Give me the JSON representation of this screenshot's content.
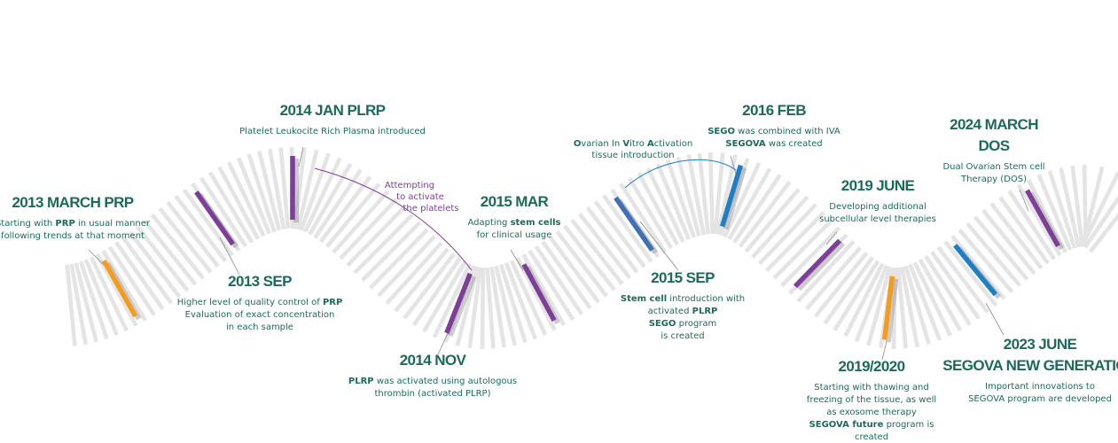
{
  "milestones": [
    {
      "title": [
        "2013 MARCH PRP"
      ],
      "color": "#f39c1e",
      "lines": [
        [
          "Starting with ",
          {
            "bold": "PRP"
          },
          "  in usual manner"
        ],
        [
          "following trends at that moment"
        ]
      ]
    },
    {
      "title": [
        "2013 SEP"
      ],
      "color": "#7e3d98",
      "lines": [
        [
          "Higher level of quality control of ",
          {
            "bold": "PRP"
          }
        ],
        [
          "Evaluation of exact concentration"
        ],
        [
          "in each sample"
        ]
      ]
    },
    {
      "title": [
        "2014 JAN PLRP"
      ],
      "color": "#7e3d98",
      "lines": [
        [
          "Platelet Leukocite Rich Plasma introduced"
        ]
      ]
    },
    {
      "title": [
        "2014 NOV"
      ],
      "color": "#7e3d98",
      "lines": [
        [
          {
            "bold": "PLRP"
          },
          " was activated using autologous"
        ],
        [
          "thrombin (activated PLRP)"
        ]
      ]
    },
    {
      "title": [
        "2015 MAR"
      ],
      "color": "#7e3d98",
      "lines": [
        [
          "Adapting ",
          {
            "bold": "stem cells"
          }
        ],
        [
          "for clinical usage"
        ]
      ]
    },
    {
      "title": [
        "2015 SEP"
      ],
      "color": "#3f6fb5",
      "lines": [
        [
          {
            "bold": "Stem cell"
          },
          " introduction with"
        ],
        [
          "activated ",
          {
            "bold": "PLRP"
          }
        ],
        [
          {
            "bold": "SEGO"
          },
          " program"
        ],
        [
          "is created"
        ]
      ]
    },
    {
      "title": [
        "2016 FEB"
      ],
      "color": "#1f7fc4",
      "lines": [
        [
          {
            "bold": "SEGO"
          },
          " was combined with IVA"
        ],
        [
          {
            "bold": "SEGOVA"
          },
          " was created"
        ]
      ]
    },
    {
      "title": [
        "2019 JUNE"
      ],
      "color": "#7e3d98",
      "lines": [
        [
          "Developing additional"
        ],
        [
          "subcellular level therapies"
        ]
      ]
    },
    {
      "title": [
        "2019/2020"
      ],
      "color": "#f39c1e",
      "lines": [
        [
          "Starting with thawing and"
        ],
        [
          "freezing of the tissue, as well"
        ],
        [
          "as exosome therapy"
        ],
        [
          {
            "bold": "SEGOVA future"
          },
          " program is"
        ],
        [
          "created"
        ]
      ]
    },
    {
      "title": [
        "2023 JUNE",
        "SEGOVA NEW GENERATION"
      ],
      "color": "#1f7fc4",
      "lines": [
        [
          "Important innovations to"
        ],
        [
          "SEGOVA program are developed"
        ]
      ]
    },
    {
      "title": [
        "2024 MARCH",
        "DOS"
      ],
      "color": "#7e3d98",
      "lines": [
        [
          "Dual Ovarian Stem cell"
        ],
        [
          "Therapy (DOS)"
        ]
      ]
    }
  ],
  "notes": [
    {
      "color": "#7e3d98",
      "lines": [
        [
          "Attempting"
        ],
        [
          "to activate"
        ],
        [
          "the platelets"
        ]
      ]
    },
    {
      "color": "#1f7fc4",
      "lines": [
        [
          {
            "bold": "O"
          },
          "varian In ",
          {
            "bold": "V"
          },
          "itro ",
          {
            "bold": "A"
          },
          "ctivation"
        ],
        [
          "tissue introduction"
        ]
      ]
    }
  ]
}
